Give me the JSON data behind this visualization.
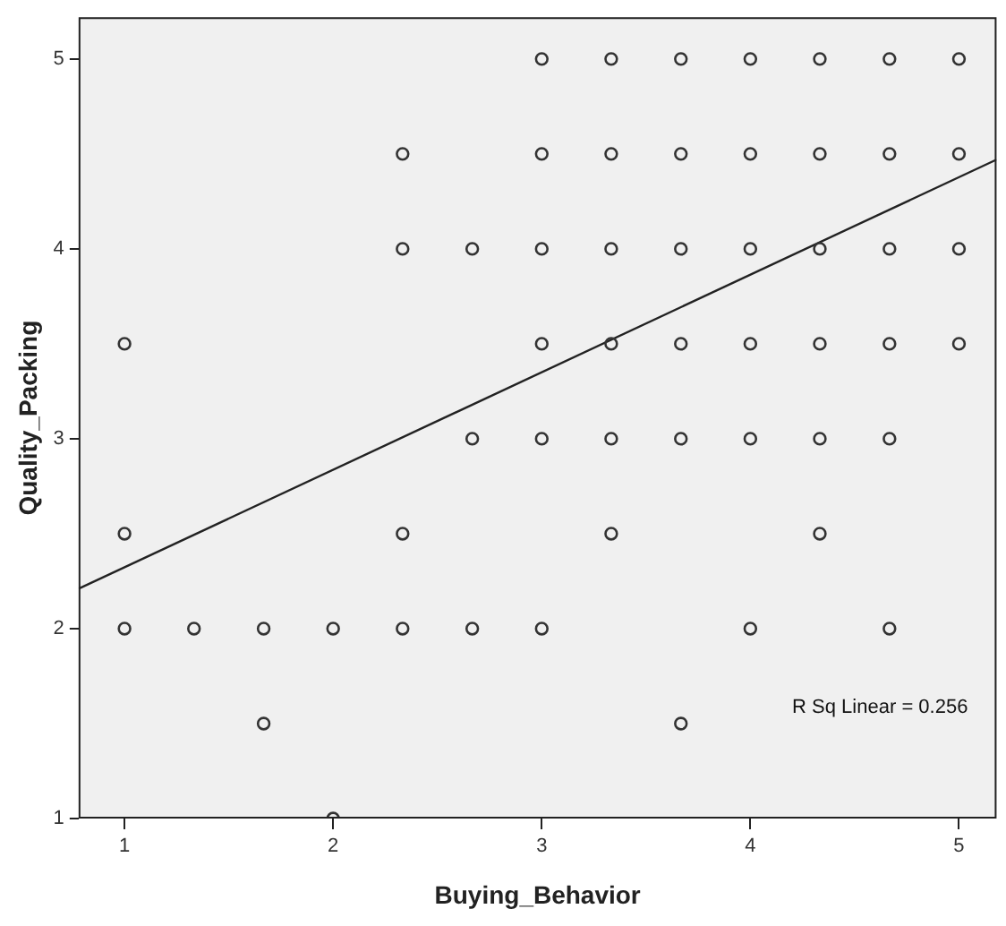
{
  "chart_data": {
    "type": "scatter",
    "xlabel": "Buying_Behavior",
    "ylabel": "Quality_Packing",
    "xlim": [
      0.78,
      5.18
    ],
    "ylim": [
      1,
      5.22
    ],
    "xticks": [
      1,
      2,
      3,
      4,
      5
    ],
    "yticks": [
      1,
      2,
      3,
      4,
      5
    ],
    "grid": false,
    "legend": false,
    "annotations": [
      "R Sq Linear = 0.256"
    ],
    "series": [
      {
        "color": "#333333",
        "marker": "circle",
        "x": [
          3,
          3.333,
          3.667,
          4,
          4.333,
          4.667,
          5,
          2.333,
          3,
          3.333,
          3.667,
          4,
          4.333,
          4.667,
          5,
          2.333,
          2.667,
          3,
          3.333,
          3.667,
          4,
          4.333,
          4.667,
          5,
          1,
          3,
          3.333,
          3.667,
          4,
          4.333,
          4.667,
          5,
          2.667,
          3,
          3.333,
          3.667,
          4,
          4.333,
          4.667,
          1,
          2.333,
          3.333,
          4.333,
          1,
          1.333,
          1.667,
          2,
          2.333,
          2.667,
          3,
          4,
          4.667,
          1.667,
          3.667,
          2
        ],
        "values": [
          5,
          5,
          5,
          5,
          5,
          5,
          5,
          4.5,
          4.5,
          4.5,
          4.5,
          4.5,
          4.5,
          4.5,
          4.5,
          4,
          4,
          4,
          4,
          4,
          4,
          4,
          4,
          4,
          3.5,
          3.5,
          3.5,
          3.5,
          3.5,
          3.5,
          3.5,
          3.5,
          3,
          3,
          3,
          3,
          3,
          3,
          3,
          2.5,
          2.5,
          2.5,
          2.5,
          2,
          2,
          2,
          2,
          2,
          2,
          2,
          2,
          2,
          1.5,
          1.5,
          1
        ]
      },
      {
        "type": "line",
        "marker": "none",
        "color": "#222222",
        "x": [
          0.78,
          5.18
        ],
        "values": [
          2.21,
          4.47
        ]
      }
    ]
  }
}
